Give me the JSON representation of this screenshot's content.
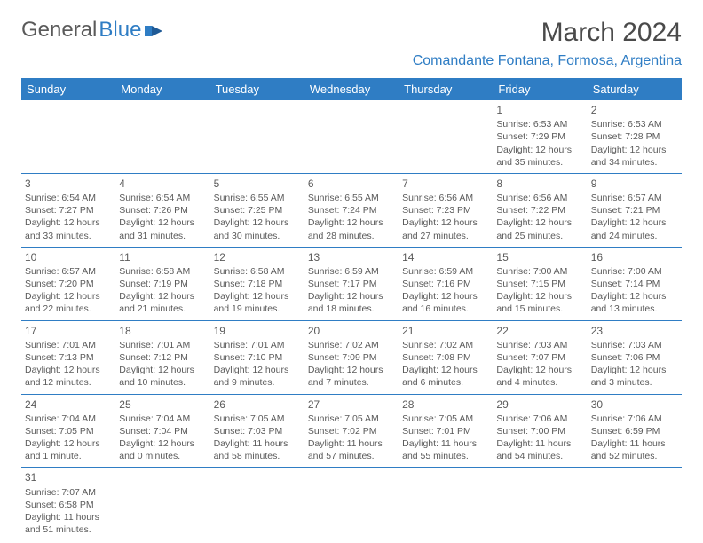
{
  "brand": {
    "part1": "General",
    "part2": "Blue"
  },
  "title": "March 2024",
  "location": "Comandante Fontana, Formosa, Argentina",
  "headers": [
    "Sunday",
    "Monday",
    "Tuesday",
    "Wednesday",
    "Thursday",
    "Friday",
    "Saturday"
  ],
  "colors": {
    "accent": "#2f7dc4",
    "text": "#4a4a4a",
    "bg": "#ffffff"
  },
  "weeks": [
    [
      null,
      null,
      null,
      null,
      null,
      {
        "n": "1",
        "sr": "Sunrise: 6:53 AM",
        "ss": "Sunset: 7:29 PM",
        "d1": "Daylight: 12 hours",
        "d2": "and 35 minutes."
      },
      {
        "n": "2",
        "sr": "Sunrise: 6:53 AM",
        "ss": "Sunset: 7:28 PM",
        "d1": "Daylight: 12 hours",
        "d2": "and 34 minutes."
      }
    ],
    [
      {
        "n": "3",
        "sr": "Sunrise: 6:54 AM",
        "ss": "Sunset: 7:27 PM",
        "d1": "Daylight: 12 hours",
        "d2": "and 33 minutes."
      },
      {
        "n": "4",
        "sr": "Sunrise: 6:54 AM",
        "ss": "Sunset: 7:26 PM",
        "d1": "Daylight: 12 hours",
        "d2": "and 31 minutes."
      },
      {
        "n": "5",
        "sr": "Sunrise: 6:55 AM",
        "ss": "Sunset: 7:25 PM",
        "d1": "Daylight: 12 hours",
        "d2": "and 30 minutes."
      },
      {
        "n": "6",
        "sr": "Sunrise: 6:55 AM",
        "ss": "Sunset: 7:24 PM",
        "d1": "Daylight: 12 hours",
        "d2": "and 28 minutes."
      },
      {
        "n": "7",
        "sr": "Sunrise: 6:56 AM",
        "ss": "Sunset: 7:23 PM",
        "d1": "Daylight: 12 hours",
        "d2": "and 27 minutes."
      },
      {
        "n": "8",
        "sr": "Sunrise: 6:56 AM",
        "ss": "Sunset: 7:22 PM",
        "d1": "Daylight: 12 hours",
        "d2": "and 25 minutes."
      },
      {
        "n": "9",
        "sr": "Sunrise: 6:57 AM",
        "ss": "Sunset: 7:21 PM",
        "d1": "Daylight: 12 hours",
        "d2": "and 24 minutes."
      }
    ],
    [
      {
        "n": "10",
        "sr": "Sunrise: 6:57 AM",
        "ss": "Sunset: 7:20 PM",
        "d1": "Daylight: 12 hours",
        "d2": "and 22 minutes."
      },
      {
        "n": "11",
        "sr": "Sunrise: 6:58 AM",
        "ss": "Sunset: 7:19 PM",
        "d1": "Daylight: 12 hours",
        "d2": "and 21 minutes."
      },
      {
        "n": "12",
        "sr": "Sunrise: 6:58 AM",
        "ss": "Sunset: 7:18 PM",
        "d1": "Daylight: 12 hours",
        "d2": "and 19 minutes."
      },
      {
        "n": "13",
        "sr": "Sunrise: 6:59 AM",
        "ss": "Sunset: 7:17 PM",
        "d1": "Daylight: 12 hours",
        "d2": "and 18 minutes."
      },
      {
        "n": "14",
        "sr": "Sunrise: 6:59 AM",
        "ss": "Sunset: 7:16 PM",
        "d1": "Daylight: 12 hours",
        "d2": "and 16 minutes."
      },
      {
        "n": "15",
        "sr": "Sunrise: 7:00 AM",
        "ss": "Sunset: 7:15 PM",
        "d1": "Daylight: 12 hours",
        "d2": "and 15 minutes."
      },
      {
        "n": "16",
        "sr": "Sunrise: 7:00 AM",
        "ss": "Sunset: 7:14 PM",
        "d1": "Daylight: 12 hours",
        "d2": "and 13 minutes."
      }
    ],
    [
      {
        "n": "17",
        "sr": "Sunrise: 7:01 AM",
        "ss": "Sunset: 7:13 PM",
        "d1": "Daylight: 12 hours",
        "d2": "and 12 minutes."
      },
      {
        "n": "18",
        "sr": "Sunrise: 7:01 AM",
        "ss": "Sunset: 7:12 PM",
        "d1": "Daylight: 12 hours",
        "d2": "and 10 minutes."
      },
      {
        "n": "19",
        "sr": "Sunrise: 7:01 AM",
        "ss": "Sunset: 7:10 PM",
        "d1": "Daylight: 12 hours",
        "d2": "and 9 minutes."
      },
      {
        "n": "20",
        "sr": "Sunrise: 7:02 AM",
        "ss": "Sunset: 7:09 PM",
        "d1": "Daylight: 12 hours",
        "d2": "and 7 minutes."
      },
      {
        "n": "21",
        "sr": "Sunrise: 7:02 AM",
        "ss": "Sunset: 7:08 PM",
        "d1": "Daylight: 12 hours",
        "d2": "and 6 minutes."
      },
      {
        "n": "22",
        "sr": "Sunrise: 7:03 AM",
        "ss": "Sunset: 7:07 PM",
        "d1": "Daylight: 12 hours",
        "d2": "and 4 minutes."
      },
      {
        "n": "23",
        "sr": "Sunrise: 7:03 AM",
        "ss": "Sunset: 7:06 PM",
        "d1": "Daylight: 12 hours",
        "d2": "and 3 minutes."
      }
    ],
    [
      {
        "n": "24",
        "sr": "Sunrise: 7:04 AM",
        "ss": "Sunset: 7:05 PM",
        "d1": "Daylight: 12 hours",
        "d2": "and 1 minute."
      },
      {
        "n": "25",
        "sr": "Sunrise: 7:04 AM",
        "ss": "Sunset: 7:04 PM",
        "d1": "Daylight: 12 hours",
        "d2": "and 0 minutes."
      },
      {
        "n": "26",
        "sr": "Sunrise: 7:05 AM",
        "ss": "Sunset: 7:03 PM",
        "d1": "Daylight: 11 hours",
        "d2": "and 58 minutes."
      },
      {
        "n": "27",
        "sr": "Sunrise: 7:05 AM",
        "ss": "Sunset: 7:02 PM",
        "d1": "Daylight: 11 hours",
        "d2": "and 57 minutes."
      },
      {
        "n": "28",
        "sr": "Sunrise: 7:05 AM",
        "ss": "Sunset: 7:01 PM",
        "d1": "Daylight: 11 hours",
        "d2": "and 55 minutes."
      },
      {
        "n": "29",
        "sr": "Sunrise: 7:06 AM",
        "ss": "Sunset: 7:00 PM",
        "d1": "Daylight: 11 hours",
        "d2": "and 54 minutes."
      },
      {
        "n": "30",
        "sr": "Sunrise: 7:06 AM",
        "ss": "Sunset: 6:59 PM",
        "d1": "Daylight: 11 hours",
        "d2": "and 52 minutes."
      }
    ],
    [
      {
        "n": "31",
        "sr": "Sunrise: 7:07 AM",
        "ss": "Sunset: 6:58 PM",
        "d1": "Daylight: 11 hours",
        "d2": "and 51 minutes."
      },
      null,
      null,
      null,
      null,
      null,
      null
    ]
  ]
}
